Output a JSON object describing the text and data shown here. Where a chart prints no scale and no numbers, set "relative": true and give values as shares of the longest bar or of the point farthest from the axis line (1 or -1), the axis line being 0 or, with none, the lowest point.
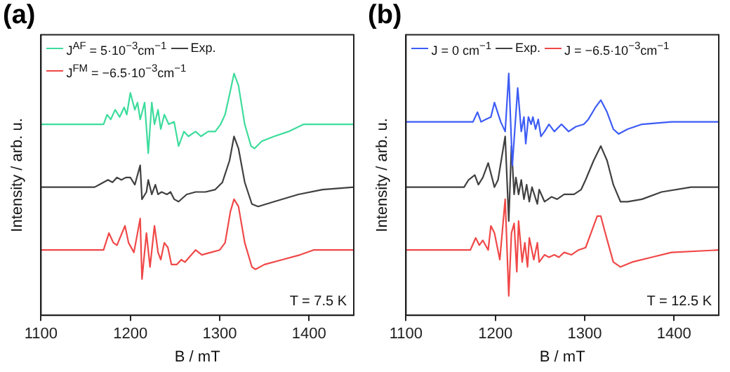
{
  "chart_data": [
    {
      "type": "line",
      "title": "(a)",
      "xlabel": "B / mT",
      "ylabel": "Intensity / arb. u.",
      "relative": true,
      "legend": "top",
      "marker": "none",
      "line_style": "solid",
      "xlim": [
        1100,
        1450
      ],
      "xticks": [
        1100,
        1200,
        1300,
        1400
      ],
      "annotations": [
        "T = 7.5 K"
      ],
      "series": [
        {
          "name": "J$^{AF}$ = 5·10$^{−3}$cm$^{−1}$",
          "color": "#3ddc9c",
          "x": [
            1100,
            1170,
            1174,
            1178,
            1183,
            1188,
            1193,
            1196,
            1200,
            1205,
            1208,
            1211,
            1216,
            1220,
            1224,
            1227,
            1231,
            1234,
            1238,
            1243,
            1249,
            1254,
            1260,
            1265,
            1273,
            1279,
            1287,
            1295,
            1301,
            1306,
            1312,
            1316,
            1321,
            1328,
            1335,
            1339,
            1347,
            1361,
            1377,
            1394,
            1404,
            1450
          ],
          "values": [
            0.79,
            0.79,
            0.83,
            0.81,
            0.85,
            0.82,
            0.86,
            0.83,
            0.92,
            0.85,
            0.88,
            0.81,
            0.88,
            0.67,
            0.88,
            0.79,
            0.85,
            0.77,
            0.83,
            0.79,
            0.8,
            0.7,
            0.76,
            0.74,
            0.76,
            0.74,
            0.76,
            0.76,
            0.79,
            0.83,
            0.93,
            1,
            0.95,
            0.79,
            0.7,
            0.69,
            0.72,
            0.74,
            0.76,
            0.79,
            0.79,
            0.79
          ]
        },
        {
          "name": "Exp.",
          "color": "#404040",
          "x": [
            1100,
            1160,
            1165,
            1175,
            1180,
            1185,
            1190,
            1195,
            1200,
            1205,
            1211,
            1213,
            1218,
            1220,
            1224,
            1228,
            1231,
            1235,
            1241,
            1245,
            1249,
            1254,
            1263,
            1273,
            1284,
            1295,
            1303,
            1311,
            1316,
            1321,
            1328,
            1336,
            1343,
            1361,
            1388,
            1415,
            1450
          ],
          "values": [
            0.53,
            0.53,
            0.54,
            0.56,
            0.55,
            0.57,
            0.56,
            0.57,
            0.57,
            0.54,
            0.62,
            0.48,
            0.51,
            0.56,
            0.5,
            0.54,
            0.5,
            0.51,
            0.5,
            0.51,
            0.48,
            0.47,
            0.5,
            0.51,
            0.51,
            0.52,
            0.55,
            0.64,
            0.74,
            0.69,
            0.55,
            0.46,
            0.45,
            0.47,
            0.5,
            0.52,
            0.53
          ]
        },
        {
          "name": "J$^{FM}$ = −6.5·10$^{−3}$cm$^{−1}$",
          "color": "#f04848",
          "x": [
            1100,
            1170,
            1176,
            1181,
            1185,
            1194,
            1198,
            1204,
            1211,
            1213,
            1218,
            1222,
            1227,
            1231,
            1234,
            1238,
            1242,
            1246,
            1252,
            1257,
            1261,
            1273,
            1280,
            1290,
            1300,
            1306,
            1312,
            1316,
            1321,
            1328,
            1336,
            1340,
            1350,
            1370,
            1390,
            1405,
            1450
          ],
          "values": [
            0.27,
            0.27,
            0.34,
            0.3,
            0.29,
            0.37,
            0.3,
            0.26,
            0.4,
            0.15,
            0.34,
            0.2,
            0.37,
            0.26,
            0.23,
            0.3,
            0.28,
            0.21,
            0.21,
            0.23,
            0.22,
            0.27,
            0.25,
            0.26,
            0.27,
            0.3,
            0.43,
            0.48,
            0.45,
            0.3,
            0.2,
            0.19,
            0.21,
            0.23,
            0.25,
            0.27,
            0.27
          ]
        }
      ]
    },
    {
      "type": "line",
      "title": "(b)",
      "xlabel": "B / mT",
      "ylabel": "Intensity / arb. u.",
      "relative": true,
      "legend": "top",
      "marker": "none",
      "line_style": "solid",
      "xlim": [
        1100,
        1450
      ],
      "xticks": [
        1100,
        1200,
        1300,
        1400
      ],
      "annotations": [
        "T = 12.5 K"
      ],
      "series": [
        {
          "name": "J = 0 cm$^{−1}$",
          "color": "#3d5cf5",
          "x": [
            1100,
            1175,
            1180,
            1184,
            1189,
            1195,
            1199,
            1206,
            1211,
            1215,
            1219,
            1225,
            1229,
            1232,
            1234,
            1237,
            1240,
            1242,
            1245,
            1248,
            1251,
            1255,
            1260,
            1266,
            1274,
            1282,
            1290,
            1299,
            1304,
            1312,
            1318,
            1325,
            1332,
            1338,
            1348,
            1364,
            1397,
            1450
          ],
          "values": [
            0.8,
            0.8,
            0.84,
            0.8,
            0.81,
            0.82,
            0.88,
            0.8,
            0.76,
            1,
            0.62,
            0.94,
            0.76,
            0.82,
            0.71,
            0.82,
            0.79,
            0.82,
            0.77,
            0.81,
            0.74,
            0.76,
            0.79,
            0.76,
            0.79,
            0.76,
            0.78,
            0.79,
            0.81,
            0.86,
            0.89,
            0.84,
            0.77,
            0.75,
            0.77,
            0.79,
            0.8,
            0.8
          ]
        },
        {
          "name": "Exp.",
          "color": "#404040",
          "x": [
            1100,
            1165,
            1170,
            1177,
            1181,
            1186,
            1192,
            1199,
            1203,
            1211,
            1215,
            1218,
            1221,
            1223,
            1226,
            1229,
            1232,
            1235,
            1238,
            1241,
            1247,
            1249,
            1255,
            1263,
            1269,
            1277,
            1288,
            1296,
            1301,
            1310,
            1318,
            1325,
            1332,
            1340,
            1348,
            1364,
            1386,
            1419,
            1450
          ],
          "values": [
            0.53,
            0.53,
            0.56,
            0.58,
            0.54,
            0.57,
            0.63,
            0.53,
            0.56,
            0.74,
            0.39,
            0.7,
            0.5,
            0.57,
            0.5,
            0.56,
            0.48,
            0.54,
            0.47,
            0.53,
            0.46,
            0.52,
            0.47,
            0.49,
            0.48,
            0.5,
            0.5,
            0.52,
            0.56,
            0.64,
            0.7,
            0.64,
            0.54,
            0.47,
            0.47,
            0.48,
            0.51,
            0.53,
            0.53
          ]
        },
        {
          "name": "J = −6.5·10$^{−3}$cm$^{−1}$",
          "color": "#f04848",
          "x": [
            1100,
            1172,
            1178,
            1182,
            1186,
            1192,
            1195,
            1199,
            1205,
            1211,
            1215,
            1218,
            1221,
            1224,
            1226,
            1230,
            1233,
            1236,
            1238,
            1243,
            1247,
            1249,
            1255,
            1260,
            1266,
            1271,
            1277,
            1285,
            1293,
            1301,
            1307,
            1314,
            1318,
            1323,
            1332,
            1340,
            1353,
            1375,
            1397,
            1450
          ],
          "values": [
            0.27,
            0.27,
            0.32,
            0.29,
            0.31,
            0.27,
            0.37,
            0.34,
            0.23,
            0.48,
            0.08,
            0.34,
            0.38,
            0.18,
            0.39,
            0.22,
            0.3,
            0.2,
            0.32,
            0.23,
            0.3,
            0.22,
            0.25,
            0.24,
            0.25,
            0.24,
            0.26,
            0.25,
            0.27,
            0.28,
            0.34,
            0.41,
            0.41,
            0.34,
            0.22,
            0.2,
            0.22,
            0.24,
            0.26,
            0.27
          ]
        }
      ]
    }
  ]
}
